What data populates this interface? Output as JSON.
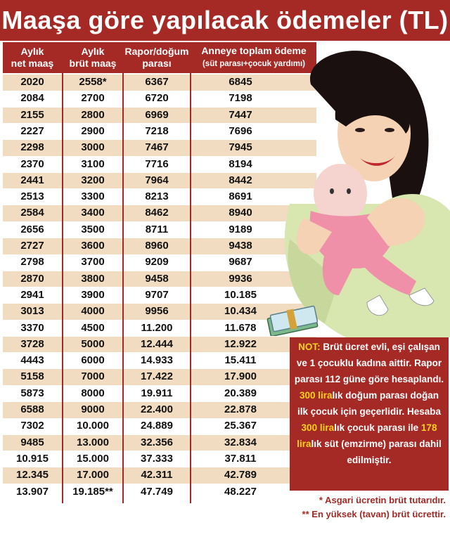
{
  "title": "Maaşa göre yapılacak ödemeler (TL)",
  "headers": {
    "net_1": "Aylık",
    "net_2": "net maaş",
    "brut_1": "Aylık",
    "brut_2": "brüt maaş",
    "rapor_1": "Rapor/doğum",
    "rapor_2": "parası",
    "anne_1": "Anneye toplam ödeme",
    "anne_2": "(süt parası+çocuk yardımı)"
  },
  "rows": [
    {
      "net": "2020",
      "brut": "2558*",
      "rapor": "6367",
      "toplam": "6845"
    },
    {
      "net": "2084",
      "brut": "2700",
      "rapor": "6720",
      "toplam": "7198"
    },
    {
      "net": "2155",
      "brut": "2800",
      "rapor": "6969",
      "toplam": "7447"
    },
    {
      "net": "2227",
      "brut": "2900",
      "rapor": "7218",
      "toplam": "7696"
    },
    {
      "net": "2298",
      "brut": "3000",
      "rapor": "7467",
      "toplam": "7945"
    },
    {
      "net": "2370",
      "brut": "3100",
      "rapor": "7716",
      "toplam": "8194"
    },
    {
      "net": "2441",
      "brut": "3200",
      "rapor": "7964",
      "toplam": "8442"
    },
    {
      "net": "2513",
      "brut": "3300",
      "rapor": "8213",
      "toplam": "8691"
    },
    {
      "net": "2584",
      "brut": "3400",
      "rapor": "8462",
      "toplam": "8940"
    },
    {
      "net": "2656",
      "brut": "3500",
      "rapor": "8711",
      "toplam": "9189"
    },
    {
      "net": "2727",
      "brut": "3600",
      "rapor": "8960",
      "toplam": "9438"
    },
    {
      "net": "2798",
      "brut": "3700",
      "rapor": "9209",
      "toplam": "9687"
    },
    {
      "net": "2870",
      "brut": "3800",
      "rapor": "9458",
      "toplam": "9936"
    },
    {
      "net": "2941",
      "brut": "3900",
      "rapor": "9707",
      "toplam": "10.185"
    },
    {
      "net": "3013",
      "brut": "4000",
      "rapor": "9956",
      "toplam": "10.434"
    },
    {
      "net": "3370",
      "brut": "4500",
      "rapor": "11.200",
      "toplam": "11.678"
    },
    {
      "net": "3728",
      "brut": "5000",
      "rapor": "12.444",
      "toplam": "12.922"
    },
    {
      "net": "4443",
      "brut": "6000",
      "rapor": "14.933",
      "toplam": "15.411"
    },
    {
      "net": "5158",
      "brut": "7000",
      "rapor": "17.422",
      "toplam": "17.900"
    },
    {
      "net": "5873",
      "brut": "8000",
      "rapor": "19.911",
      "toplam": "20.389"
    },
    {
      "net": "6588",
      "brut": "9000",
      "rapor": "22.400",
      "toplam": "22.878"
    },
    {
      "net": "7302",
      "brut": "10.000",
      "rapor": "24.889",
      "toplam": "25.367"
    },
    {
      "net": "9485",
      "brut": "13.000",
      "rapor": "32.356",
      "toplam": "32.834"
    },
    {
      "net": "10.915",
      "brut": "15.000",
      "rapor": "37.333",
      "toplam": "37.811"
    },
    {
      "net": "12.345",
      "brut": "17.000",
      "rapor": "42.311",
      "toplam": "42.789"
    },
    {
      "net": "13.907",
      "brut": "19.185**",
      "rapor": "47.749",
      "toplam": "48.227"
    }
  ],
  "note": {
    "label": "NOT:",
    "t1": " Brüt ücret evli, eşi çalışan ve 1 çocuklu kadına aittir. Rapor parası 112 güne göre hesaplandı. ",
    "h1": "300 lira",
    "t2": "lık doğum parası doğan ilk çocuk için geçerlidir. Hesaba ",
    "h2": "300 lira",
    "t3": "lık çocuk parası ile ",
    "h3": "178 lira",
    "t4": "lık süt (emzirme) parası dahil edilmiştir."
  },
  "footnotes": {
    "f1": "* Asgari ücretin brüt tutarıdır.",
    "f2": "** En yüksek (tavan) brüt ücrettir."
  },
  "colors": {
    "accent": "#a52a26",
    "row_alt": "#f1dcc2",
    "highlight": "#ffd21a"
  }
}
